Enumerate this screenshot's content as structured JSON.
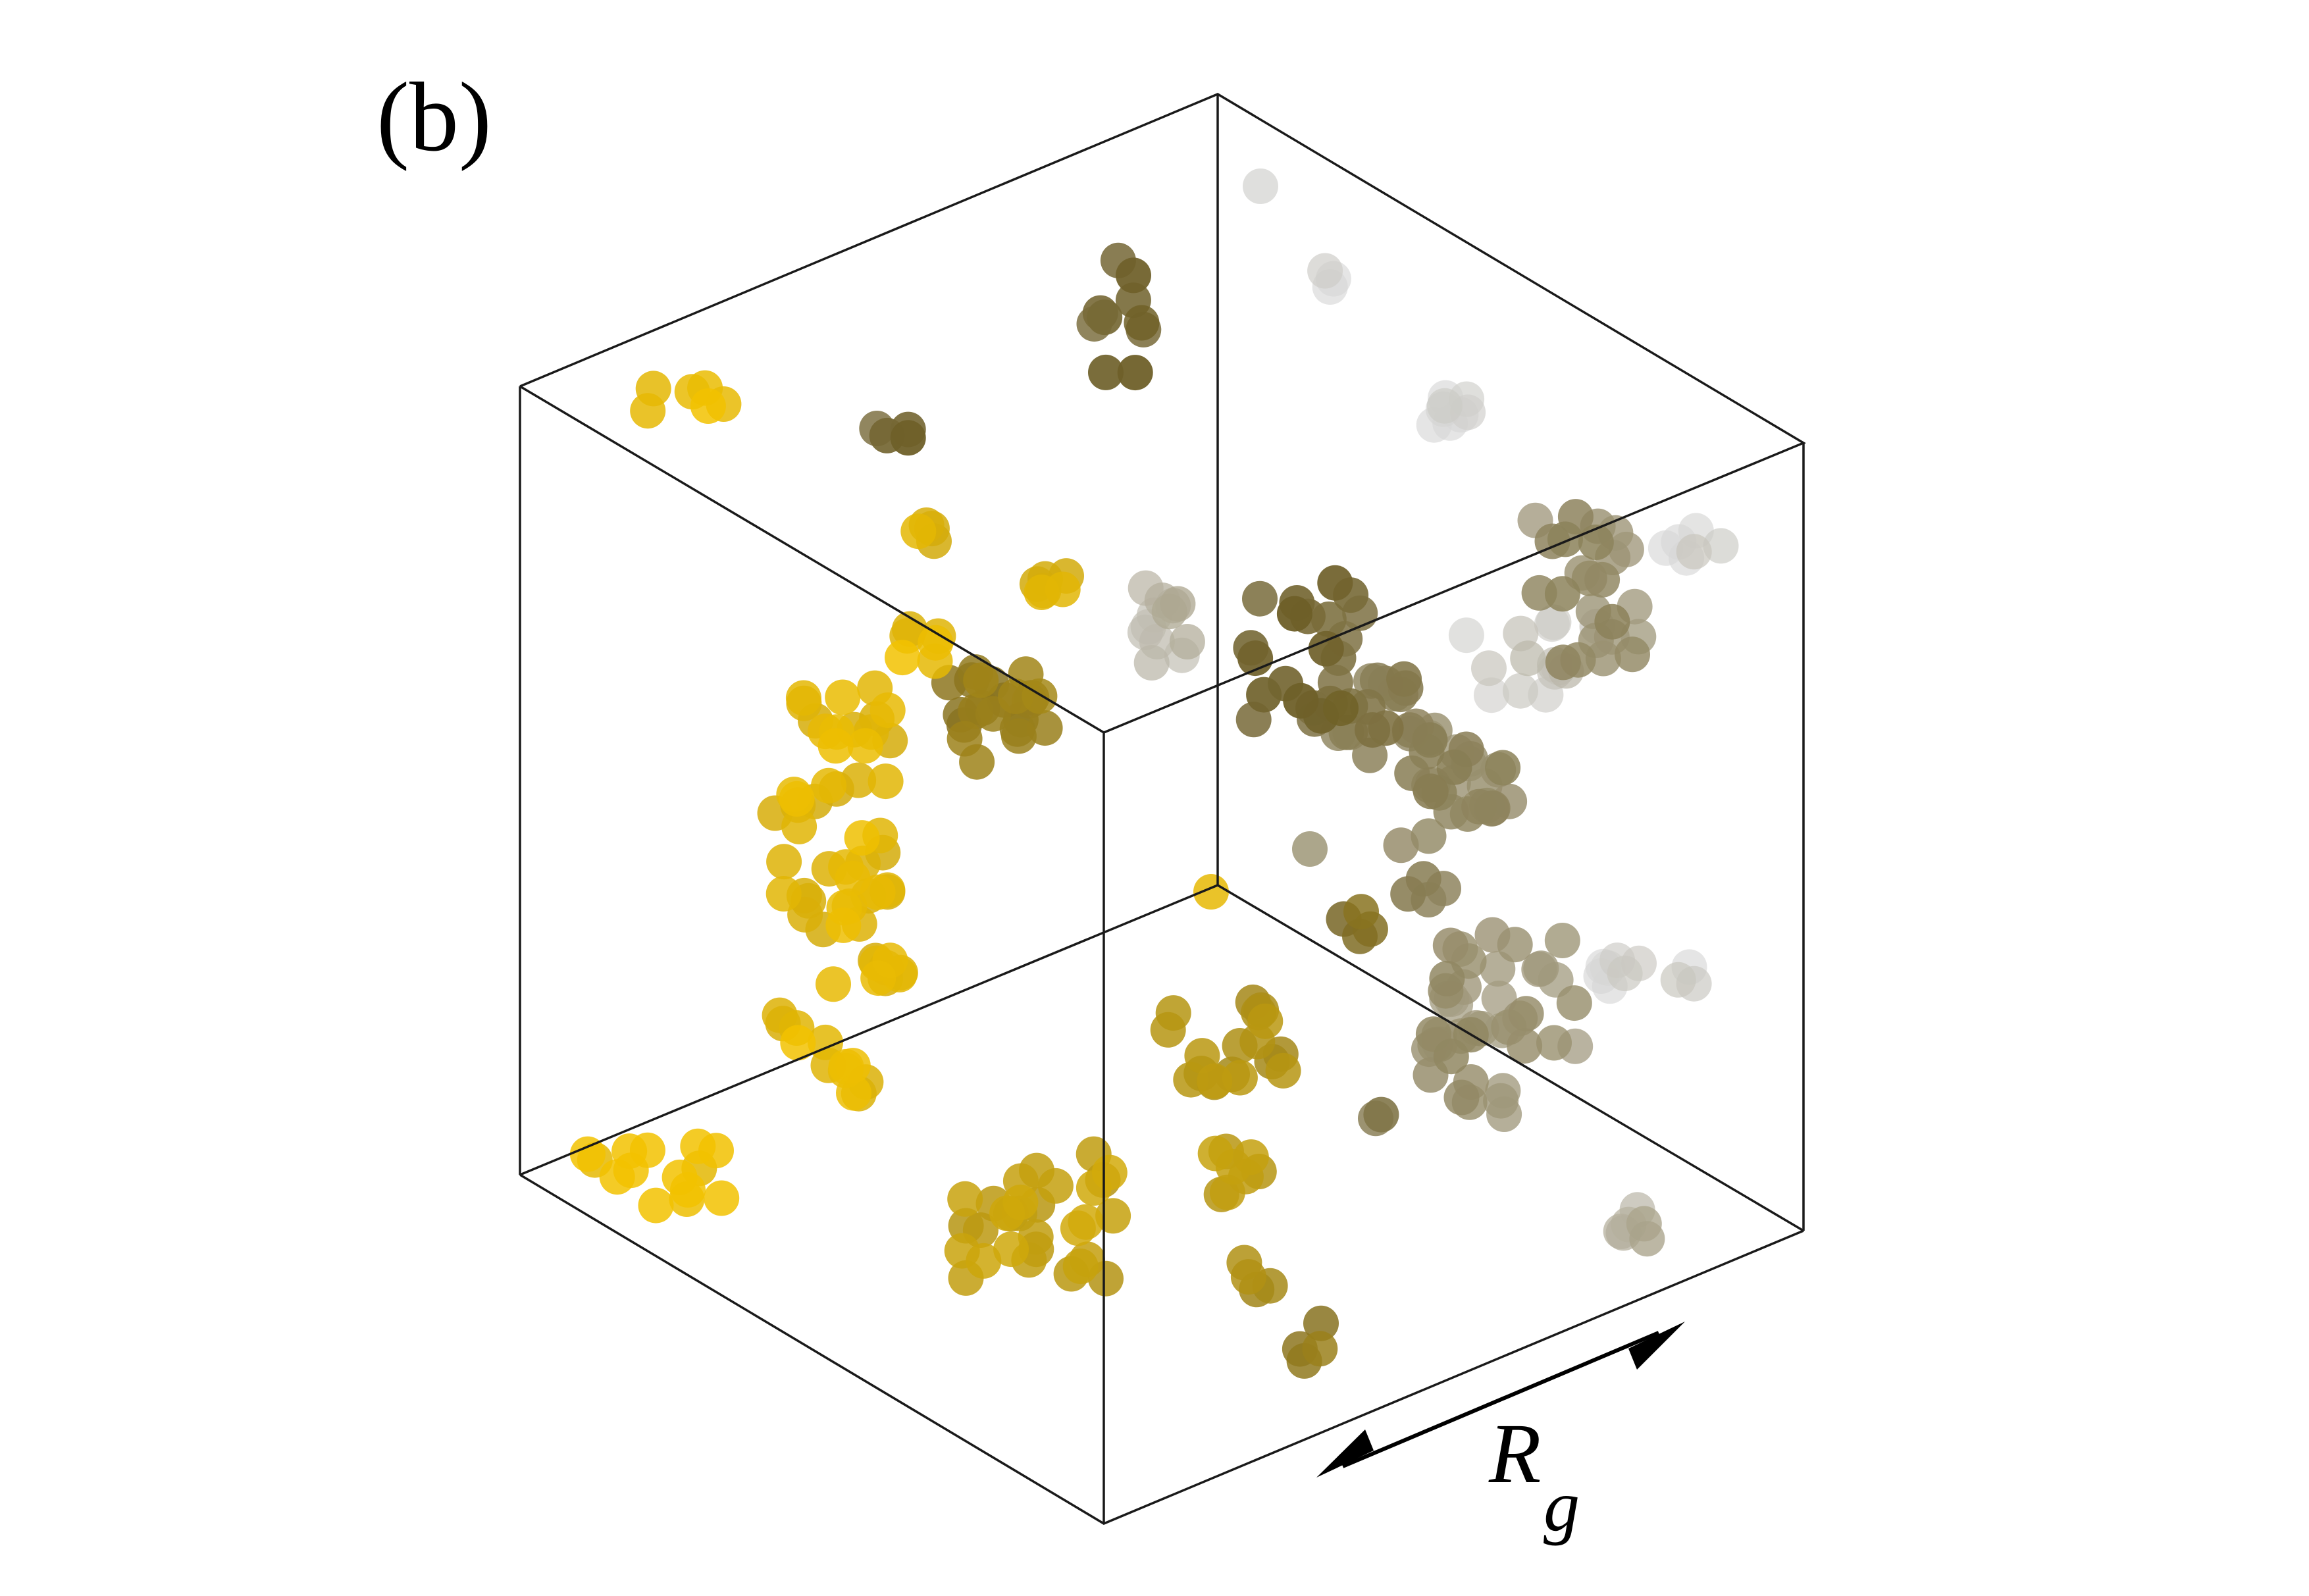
{
  "panel_label": "(b)",
  "scale_label": {
    "main": "R",
    "subscript": "g"
  },
  "colors": {
    "front_particle": "#f2c200",
    "mid_particle": "#7a6a20",
    "back_particle": "#c8c8c8",
    "box_edges": "#1a1a1a",
    "arrow": "#000000"
  }
}
